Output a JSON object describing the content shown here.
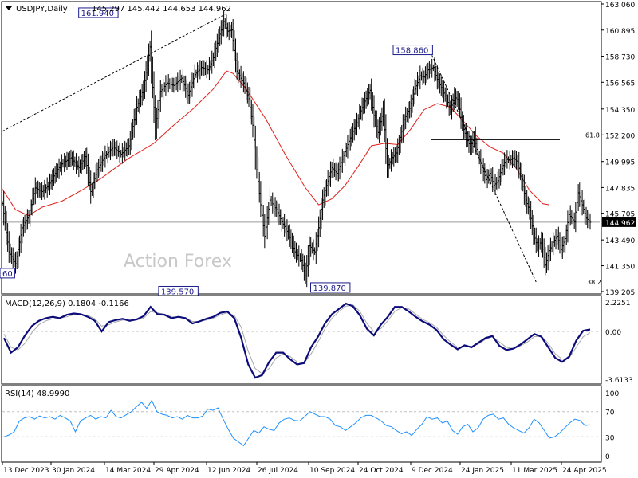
{
  "chart_data": [
    {
      "type": "candlestick",
      "title": "USDJPY,Daily",
      "ohlc_text": "145.297 145.442 144.653 144.962",
      "watermark": "Action Forex",
      "y_ticks": [
        "163.060",
        "160.895",
        "158.730",
        "156.565",
        "154.350",
        "152.200",
        "149.995",
        "147.835",
        "145.705",
        "143.490",
        "141.350",
        "139.205"
      ],
      "y_tick_values": [
        163.06,
        160.895,
        158.73,
        156.565,
        154.35,
        152.2,
        149.995,
        147.835,
        145.705,
        143.49,
        141.35,
        139.205
      ],
      "ylim": [
        139.205,
        163.06
      ],
      "current_price": 144.962,
      "current_price_label": "144.962",
      "annotations": [
        {
          "label": "161.940",
          "value": 161.94
        },
        {
          "label": "158.860",
          "value": 158.86
        },
        {
          "label": "139.570",
          "value": 139.57
        },
        {
          "label": "139.870",
          "value": 139.87
        },
        {
          "label": "60",
          "value": 140.6
        }
      ],
      "level_labels": [
        {
          "label": "61.8",
          "value": 151.8
        },
        {
          "label": "38.2",
          "value": 139.6
        }
      ],
      "moving_average": [
        {
          "x": 0,
          "y": 147.7
        },
        {
          "x": 10,
          "y": 146.0
        },
        {
          "x": 20,
          "y": 145.5
        },
        {
          "x": 30,
          "y": 146.2
        },
        {
          "x": 45,
          "y": 146.7
        },
        {
          "x": 60,
          "y": 147.6
        },
        {
          "x": 75,
          "y": 148.6
        },
        {
          "x": 95,
          "y": 150.2
        },
        {
          "x": 115,
          "y": 151.5
        },
        {
          "x": 130,
          "y": 153.0
        },
        {
          "x": 145,
          "y": 154.4
        },
        {
          "x": 160,
          "y": 156.0
        },
        {
          "x": 170,
          "y": 157.5
        },
        {
          "x": 175,
          "y": 157.3
        },
        {
          "x": 185,
          "y": 156.0
        },
        {
          "x": 200,
          "y": 153.5
        },
        {
          "x": 215,
          "y": 150.5
        },
        {
          "x": 230,
          "y": 147.8
        },
        {
          "x": 240,
          "y": 146.4
        },
        {
          "x": 250,
          "y": 146.9
        },
        {
          "x": 260,
          "y": 148.0
        },
        {
          "x": 270,
          "y": 149.6
        },
        {
          "x": 280,
          "y": 151.3
        },
        {
          "x": 290,
          "y": 151.5
        },
        {
          "x": 300,
          "y": 151.4
        },
        {
          "x": 310,
          "y": 152.7
        },
        {
          "x": 320,
          "y": 154.3
        },
        {
          "x": 330,
          "y": 154.8
        },
        {
          "x": 340,
          "y": 154.5
        },
        {
          "x": 350,
          "y": 153.3
        },
        {
          "x": 360,
          "y": 152.1
        },
        {
          "x": 370,
          "y": 151.2
        },
        {
          "x": 380,
          "y": 150.7
        },
        {
          "x": 390,
          "y": 149.4
        },
        {
          "x": 400,
          "y": 147.6
        },
        {
          "x": 410,
          "y": 146.5
        },
        {
          "x": 415,
          "y": 146.4
        }
      ],
      "trendlines": [
        {
          "x1": 0,
          "y1": 152.5,
          "x2": 169,
          "y2": 162.2,
          "style": "dashed"
        },
        {
          "x1": 326,
          "y1": 158.8,
          "x2": 405,
          "y2": 140.0,
          "style": "dashed"
        },
        {
          "x1": 325,
          "y1": 151.8,
          "x2": 423,
          "y2": 151.8,
          "style": "solid"
        }
      ],
      "price_path": [
        {
          "x": 0,
          "y": 146.5
        },
        {
          "x": 5,
          "y": 142.5
        },
        {
          "x": 10,
          "y": 141.5
        },
        {
          "x": 15,
          "y": 144.5
        },
        {
          "x": 20,
          "y": 145.5
        },
        {
          "x": 25,
          "y": 147.8
        },
        {
          "x": 30,
          "y": 147.5
        },
        {
          "x": 35,
          "y": 148.0
        },
        {
          "x": 40,
          "y": 149.0
        },
        {
          "x": 45,
          "y": 149.8
        },
        {
          "x": 52,
          "y": 150.3
        },
        {
          "x": 58,
          "y": 149.5
        },
        {
          "x": 63,
          "y": 150.4
        },
        {
          "x": 67,
          "y": 147.5
        },
        {
          "x": 72,
          "y": 149.3
        },
        {
          "x": 78,
          "y": 150.5
        },
        {
          "x": 84,
          "y": 151.2
        },
        {
          "x": 90,
          "y": 150.6
        },
        {
          "x": 96,
          "y": 151.3
        },
        {
          "x": 102,
          "y": 154.5
        },
        {
          "x": 107,
          "y": 156.0
        },
        {
          "x": 112,
          "y": 159.5
        },
        {
          "x": 116,
          "y": 152.8
        },
        {
          "x": 120,
          "y": 155.8
        },
        {
          "x": 125,
          "y": 156.5
        },
        {
          "x": 130,
          "y": 156.3
        },
        {
          "x": 136,
          "y": 156.9
        },
        {
          "x": 141,
          "y": 155.5
        },
        {
          "x": 146,
          "y": 157.2
        },
        {
          "x": 151,
          "y": 157.8
        },
        {
          "x": 156,
          "y": 157.6
        },
        {
          "x": 160,
          "y": 158.6
        },
        {
          "x": 164,
          "y": 160.2
        },
        {
          "x": 168,
          "y": 161.6
        },
        {
          "x": 171,
          "y": 160.8
        },
        {
          "x": 174,
          "y": 160.9
        },
        {
          "x": 178,
          "y": 157.5
        },
        {
          "x": 183,
          "y": 156.5
        },
        {
          "x": 187,
          "y": 155.2
        },
        {
          "x": 190,
          "y": 153.0
        },
        {
          "x": 193,
          "y": 149.3
        },
        {
          "x": 196,
          "y": 146.4
        },
        {
          "x": 199,
          "y": 143.8
        },
        {
          "x": 203,
          "y": 146.8
        },
        {
          "x": 208,
          "y": 146.0
        },
        {
          "x": 212,
          "y": 145.0
        },
        {
          "x": 217,
          "y": 144.0
        },
        {
          "x": 222,
          "y": 142.5
        },
        {
          "x": 227,
          "y": 141.8
        },
        {
          "x": 230,
          "y": 140.5
        },
        {
          "x": 233,
          "y": 143.0
        },
        {
          "x": 237,
          "y": 142.5
        },
        {
          "x": 240,
          "y": 144.5
        },
        {
          "x": 243,
          "y": 146.8
        },
        {
          "x": 246,
          "y": 148.0
        },
        {
          "x": 250,
          "y": 149.5
        },
        {
          "x": 254,
          "y": 149.0
        },
        {
          "x": 258,
          "y": 150.2
        },
        {
          "x": 262,
          "y": 151.4
        },
        {
          "x": 266,
          "y": 152.5
        },
        {
          "x": 269,
          "y": 153.2
        },
        {
          "x": 272,
          "y": 154.2
        },
        {
          "x": 275,
          "y": 155.0
        },
        {
          "x": 279,
          "y": 155.9
        },
        {
          "x": 282,
          "y": 153.8
        },
        {
          "x": 285,
          "y": 152.4
        },
        {
          "x": 289,
          "y": 154.2
        },
        {
          "x": 292,
          "y": 149.5
        },
        {
          "x": 295,
          "y": 150.2
        },
        {
          "x": 299,
          "y": 150.7
        },
        {
          "x": 302,
          "y": 152.0
        },
        {
          "x": 305,
          "y": 153.5
        },
        {
          "x": 309,
          "y": 154.4
        },
        {
          "x": 313,
          "y": 156.0
        },
        {
          "x": 317,
          "y": 157.1
        },
        {
          "x": 320,
          "y": 157.0
        },
        {
          "x": 323,
          "y": 157.6
        },
        {
          "x": 327,
          "y": 157.8
        },
        {
          "x": 330,
          "y": 156.8
        },
        {
          "x": 334,
          "y": 155.9
        },
        {
          "x": 337,
          "y": 155.2
        },
        {
          "x": 340,
          "y": 154.3
        },
        {
          "x": 343,
          "y": 155.4
        },
        {
          "x": 346,
          "y": 155.0
        },
        {
          "x": 349,
          "y": 153.0
        },
        {
          "x": 352,
          "y": 152.0
        },
        {
          "x": 355,
          "y": 151.2
        },
        {
          "x": 358,
          "y": 152.0
        },
        {
          "x": 361,
          "y": 150.5
        },
        {
          "x": 364,
          "y": 149.5
        },
        {
          "x": 367,
          "y": 148.5
        },
        {
          "x": 370,
          "y": 149.0
        },
        {
          "x": 373,
          "y": 148.0
        },
        {
          "x": 376,
          "y": 148.4
        },
        {
          "x": 379,
          "y": 149.4
        },
        {
          "x": 382,
          "y": 150.2
        },
        {
          "x": 385,
          "y": 150.1
        },
        {
          "x": 388,
          "y": 150.3
        },
        {
          "x": 391,
          "y": 149.9
        },
        {
          "x": 394,
          "y": 148.5
        },
        {
          "x": 397,
          "y": 146.8
        },
        {
          "x": 400,
          "y": 145.9
        },
        {
          "x": 403,
          "y": 144.0
        },
        {
          "x": 406,
          "y": 142.9
        },
        {
          "x": 409,
          "y": 143.4
        },
        {
          "x": 412,
          "y": 141.4
        },
        {
          "x": 415,
          "y": 142.6
        },
        {
          "x": 418,
          "y": 143.3
        },
        {
          "x": 421,
          "y": 143.8
        },
        {
          "x": 424,
          "y": 142.7
        },
        {
          "x": 427,
          "y": 143.6
        },
        {
          "x": 430,
          "y": 145.6
        },
        {
          "x": 434,
          "y": 145.0
        },
        {
          "x": 437,
          "y": 147.4
        },
        {
          "x": 440,
          "y": 146.4
        },
        {
          "x": 443,
          "y": 145.3
        },
        {
          "x": 446,
          "y": 144.962
        }
      ]
    },
    {
      "type": "line",
      "title": "MACD(12,26,9) 0.1804 -0.1166",
      "y_ticks": [
        "2.2251",
        "0.00",
        "-3.6133"
      ],
      "ylim": [
        -3.6133,
        2.2251
      ],
      "series": [
        {
          "values": [
            -0.5,
            -1.6,
            -1.2,
            -0.3,
            0.4,
            0.8,
            1.0,
            1.1,
            1.0,
            1.25,
            1.35,
            1.3,
            1.1,
            0.8,
            0.0,
            0.7,
            0.85,
            0.95,
            0.8,
            0.9,
            1.15,
            1.85,
            1.3,
            1.25,
            1.0,
            1.1,
            1.0,
            0.6,
            0.75,
            0.95,
            1.1,
            1.4,
            1.5,
            1.0,
            -0.5,
            -2.5,
            -3.5,
            -3.3,
            -2.3,
            -1.6,
            -1.6,
            -2.1,
            -2.5,
            -2.4,
            -1.2,
            -0.4,
            0.6,
            1.3,
            1.7,
            2.1,
            1.9,
            1.2,
            0.2,
            -0.3,
            0.5,
            1.1,
            1.85,
            1.85,
            1.5,
            1.1,
            0.75,
            0.5,
            0.1,
            -0.6,
            -1.0,
            -1.35,
            -1.05,
            -1.2,
            -0.85,
            -0.5,
            -0.35,
            -1.1,
            -1.4,
            -1.3,
            -1.0,
            -0.6,
            -0.2,
            -0.4,
            -1.2,
            -2.0,
            -2.3,
            -1.9,
            -0.7,
            0.05,
            0.15
          ]
        },
        {
          "values": [
            -0.2,
            -1.2,
            -1.4,
            -0.9,
            -0.1,
            0.5,
            0.8,
            0.95,
            1.0,
            1.1,
            1.25,
            1.3,
            1.2,
            0.95,
            0.4,
            0.5,
            0.7,
            0.85,
            0.85,
            0.85,
            1.0,
            1.5,
            1.4,
            1.3,
            1.1,
            1.05,
            1.05,
            0.75,
            0.75,
            0.85,
            1.0,
            1.25,
            1.4,
            1.2,
            0.3,
            -1.5,
            -2.8,
            -3.2,
            -2.8,
            -2.0,
            -1.7,
            -1.9,
            -2.3,
            -2.4,
            -1.7,
            -0.8,
            0.2,
            1.0,
            1.5,
            1.9,
            2.0,
            1.5,
            0.6,
            0.0,
            0.2,
            0.8,
            1.5,
            1.8,
            1.7,
            1.3,
            0.9,
            0.65,
            0.3,
            -0.3,
            -0.8,
            -1.2,
            -1.15,
            -1.15,
            -0.95,
            -0.6,
            -0.4,
            -0.8,
            -1.2,
            -1.3,
            -1.1,
            -0.8,
            -0.4,
            -0.35,
            -0.9,
            -1.7,
            -2.1,
            -2.0,
            -1.2,
            -0.4,
            -0.1
          ]
        }
      ]
    },
    {
      "type": "line",
      "title": "RSI(14) 48.9990",
      "y_ticks": [
        "100",
        "70",
        "30",
        "0"
      ],
      "ylim": [
        0,
        100
      ],
      "series": [
        {
          "values": [
            30,
            33,
            38,
            55,
            60,
            62,
            58,
            63,
            60,
            62,
            58,
            64,
            60,
            55,
            38,
            55,
            60,
            64,
            58,
            62,
            60,
            72,
            62,
            60,
            65,
            70,
            78,
            85,
            75,
            88,
            70,
            66,
            64,
            60,
            62,
            58,
            64,
            60,
            60,
            63,
            74,
            72,
            76,
            58,
            42,
            28,
            22,
            16,
            28,
            40,
            36,
            46,
            42,
            40,
            52,
            58,
            60,
            56,
            55,
            62,
            70,
            66,
            62,
            62,
            58,
            48,
            46,
            40,
            46,
            52,
            60,
            64,
            64,
            60,
            55,
            48,
            46,
            40,
            35,
            38,
            32,
            42,
            50,
            62,
            58,
            60,
            52,
            55,
            40,
            34,
            46,
            50,
            38,
            44,
            58,
            64,
            66,
            58,
            60,
            50,
            44,
            40,
            36,
            44,
            58,
            52,
            40,
            28,
            30,
            36,
            44,
            52,
            58,
            56,
            48,
            49
          ]
        }
      ]
    }
  ],
  "x_axis_labels": [
    "13 Dec 2023",
    "30 Jan 2024",
    "14 Mar 2024",
    "29 Apr 2024",
    "12 Jun 2024",
    "26 Jul 2024",
    "10 Sep 2024",
    "24 Oct 2024",
    "9 Dec 2024",
    "24 Jan 2025",
    "11 Mar 2025",
    "24 Apr 2025"
  ]
}
